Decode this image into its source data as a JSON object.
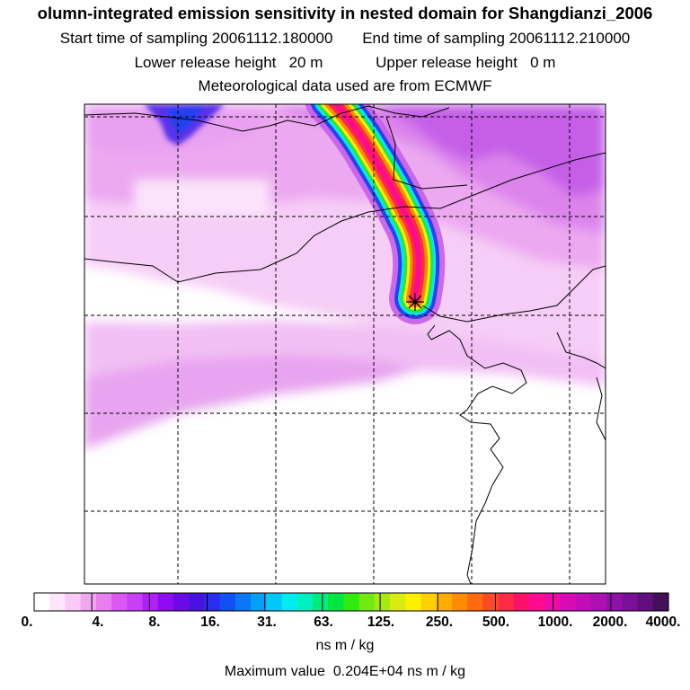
{
  "header": {
    "title": "olumn-integrated emission sensitivity in nested domain for Shangdianzi_2006",
    "start_label": "Start time of sampling",
    "start_value": "20061112.180000",
    "end_label": "End time of sampling",
    "end_value": "20061112.210000",
    "lower_label": "Lower release height",
    "lower_value": "20 m",
    "upper_label": "Upper release height",
    "upper_value": "0 m",
    "met_line": "Meteorological data used are from ECMWF"
  },
  "map": {
    "receptor_marker": "star-marker",
    "plume_direction": "northwest"
  },
  "colorbar": {
    "tick_labels": [
      "0.",
      "4.",
      "8.",
      "16.",
      "31.",
      "63.",
      "125.",
      "250.",
      "500.",
      "1000.",
      "2000.",
      "4000."
    ],
    "units": "ns m / kg",
    "colors": [
      "#ffffff",
      "#fde6fc",
      "#f9c9f7",
      "#f2a5f0",
      "#e87ff0",
      "#dc57f2",
      "#c93ff5",
      "#b020f5",
      "#8f0cf0",
      "#6a0ae6",
      "#4a12e0",
      "#2a2cf0",
      "#1050f5",
      "#0a78f5",
      "#00a0f8",
      "#00c8f8",
      "#00ecf0",
      "#00f0c0",
      "#00ec80",
      "#00e840",
      "#30ea10",
      "#70ea10",
      "#a8ea10",
      "#d8ec10",
      "#fff000",
      "#ffd000",
      "#ffac00",
      "#ff8c00",
      "#ff6a10",
      "#ff4a28",
      "#ff2a44",
      "#ff1068",
      "#ff0a90",
      "#ee0aa8",
      "#d80ab6",
      "#c20cb8",
      "#ac10b4",
      "#9010a8",
      "#7a1098",
      "#60107e",
      "#44105c"
    ]
  },
  "footer": {
    "max_label": "Maximum value",
    "max_value": "0.204E+04",
    "max_units": "ns m / kg"
  }
}
